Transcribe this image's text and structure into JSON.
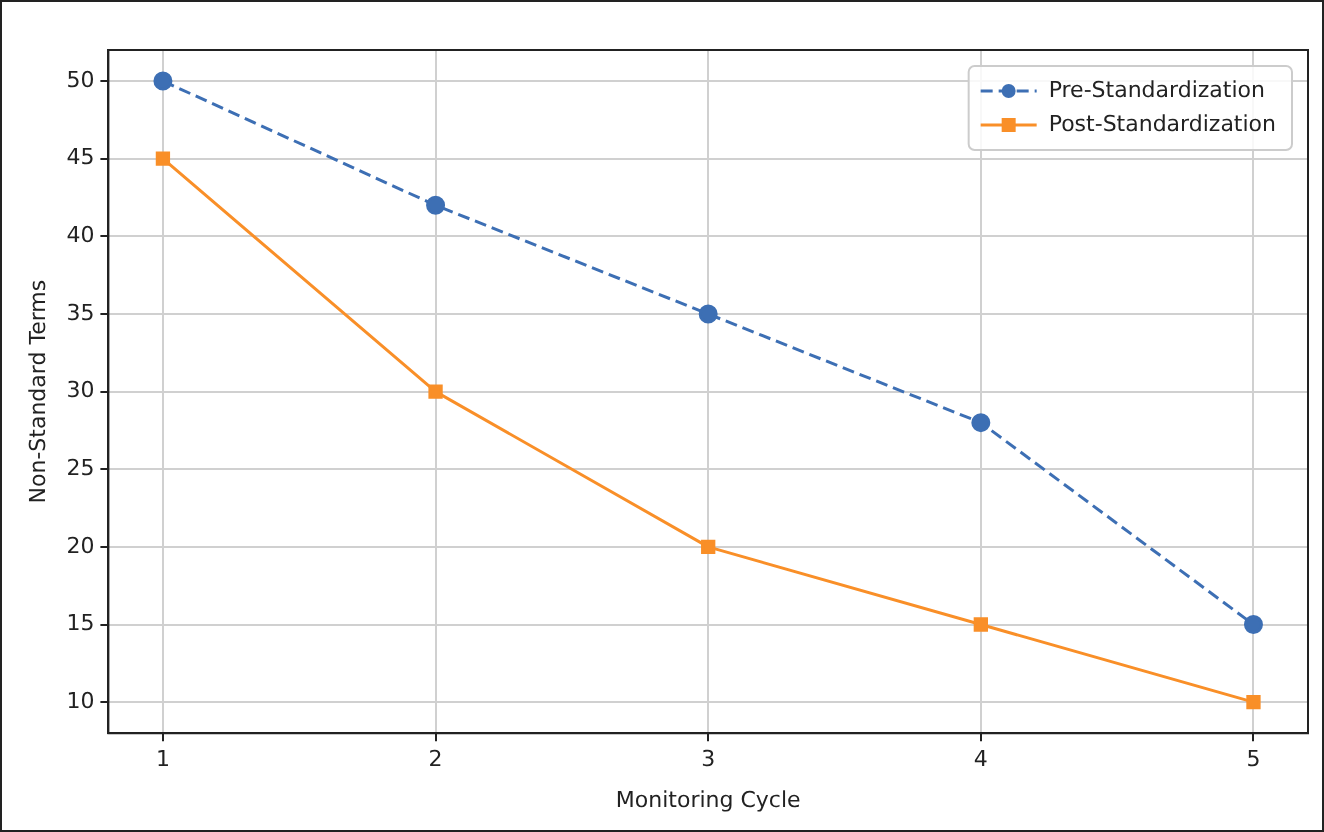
{
  "chart_data": {
    "type": "line",
    "xlabel": "Monitoring Cycle",
    "ylabel": "Non-Standard Terms",
    "x": [
      1,
      2,
      3,
      4,
      5
    ],
    "series": [
      {
        "name": "Pre-Standardization",
        "color": "#3d6fb4",
        "values": [
          50,
          42,
          35,
          28,
          15
        ],
        "marker": "circle",
        "line_style": "dashed"
      },
      {
        "name": "Post-Standardization",
        "color": "#f98f28",
        "values": [
          45,
          30,
          20,
          15,
          10
        ],
        "marker": "square",
        "line_style": "solid"
      }
    ],
    "xlim": [
      0.8,
      5.2
    ],
    "xticks": [
      1,
      2,
      3,
      4,
      5
    ],
    "ylim": [
      8,
      52
    ],
    "yticks": [
      10,
      15,
      20,
      25,
      30,
      35,
      40,
      45,
      50
    ],
    "grid": true,
    "legend": "top right"
  }
}
